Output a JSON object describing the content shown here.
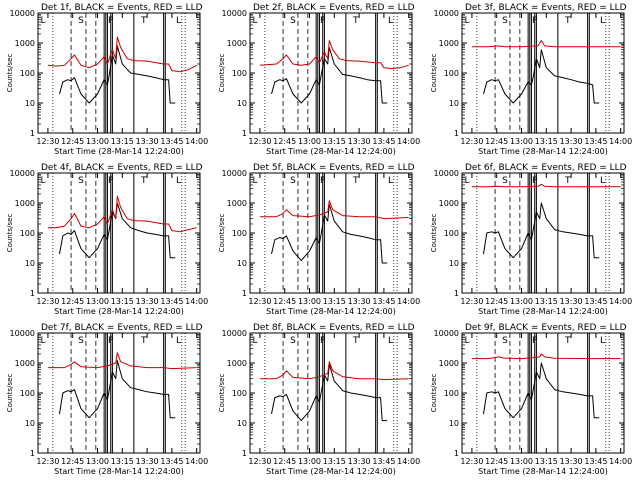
{
  "figure": {
    "xlabel": "Start Time (28-Mar-14 12:24:00)",
    "ylabel": "Counts/sec",
    "black_label": "BLACK = Events",
    "red_label": "RED = LLD",
    "x_ticks": [
      "12:30",
      "12:45",
      "13:00",
      "13:15",
      "13:30",
      "13:45",
      "14:00"
    ],
    "y_ticks": [
      "1",
      "10",
      "100",
      "1000",
      "10000"
    ],
    "interval_letters": {
      "left": "L",
      "start": "S",
      "peak": "P",
      "tail": "T",
      "right": "L"
    }
  },
  "chart_data": [
    {
      "type": "line",
      "title": "Det 1f, BLACK = Events, RED = LLD",
      "xlabel": "Start Time (28-Mar-14 12:24:00)",
      "ylabel": "Counts/sec",
      "yscale": "log",
      "ylim": [
        1,
        10000
      ],
      "xlim": [
        "12:24",
        "14:02"
      ],
      "series": [
        {
          "name": "BLACK = Events",
          "color": "#000000",
          "x": [
            "12:37",
            "12:39",
            "12:42",
            "12:44",
            "12:46",
            "12:50",
            "12:55",
            "13:00",
            "13:04",
            "13:06",
            "13:07",
            "13:09",
            "13:11",
            "13:12",
            "13:15",
            "13:20",
            "13:25",
            "13:30",
            "13:35",
            "13:40",
            "13:43",
            "13:44",
            "13:47"
          ],
          "y": [
            20,
            50,
            60,
            55,
            70,
            20,
            10,
            20,
            60,
            40,
            80,
            400,
            200,
            800,
            200,
            100,
            90,
            80,
            70,
            60,
            60,
            10,
            10
          ]
        },
        {
          "name": "RED = LLD",
          "color": "#cc0000",
          "x": [
            "12:30",
            "12:35",
            "12:40",
            "12:44",
            "12:46",
            "12:50",
            "12:55",
            "13:00",
            "13:04",
            "13:06",
            "13:09",
            "13:11",
            "13:12",
            "13:14",
            "13:18",
            "13:22",
            "13:30",
            "13:40",
            "13:43",
            "13:45",
            "13:50",
            "13:55",
            "14:00"
          ],
          "y": [
            180,
            170,
            180,
            300,
            400,
            180,
            150,
            200,
            350,
            200,
            600,
            300,
            1600,
            700,
            300,
            260,
            250,
            200,
            200,
            120,
            110,
            130,
            180
          ]
        }
      ]
    },
    {
      "type": "line",
      "title": "Det 2f, BLACK = Events, RED = LLD",
      "xlabel": "Start Time (28-Mar-14 12:24:00)",
      "ylabel": "Counts/sec",
      "yscale": "log",
      "ylim": [
        1,
        10000
      ],
      "xlim": [
        "12:24",
        "14:02"
      ],
      "series": [
        {
          "name": "BLACK = Events",
          "color": "#000000",
          "x": [
            "12:37",
            "12:39",
            "12:42",
            "12:44",
            "12:46",
            "12:50",
            "12:55",
            "13:00",
            "13:04",
            "13:06",
            "13:07",
            "13:09",
            "13:11",
            "13:12",
            "13:15",
            "13:20",
            "13:25",
            "13:30",
            "13:35",
            "13:40",
            "13:43",
            "13:44",
            "13:47"
          ],
          "y": [
            20,
            50,
            60,
            55,
            65,
            20,
            10,
            20,
            60,
            40,
            80,
            300,
            200,
            700,
            200,
            90,
            80,
            70,
            60,
            55,
            55,
            10,
            10
          ]
        },
        {
          "name": "RED = LLD",
          "color": "#cc0000",
          "x": [
            "12:30",
            "12:35",
            "12:40",
            "12:44",
            "12:46",
            "12:50",
            "12:55",
            "13:00",
            "13:04",
            "13:06",
            "13:09",
            "13:11",
            "13:12",
            "13:14",
            "13:18",
            "13:22",
            "13:30",
            "13:40",
            "13:43",
            "13:45",
            "13:50",
            "13:55",
            "14:00"
          ],
          "y": [
            180,
            190,
            200,
            300,
            400,
            200,
            180,
            200,
            350,
            220,
            500,
            300,
            1200,
            600,
            300,
            260,
            250,
            220,
            220,
            150,
            140,
            150,
            180
          ]
        }
      ]
    },
    {
      "type": "line",
      "title": "Det 3f, BLACK = Events, RED = LLD",
      "xlabel": "Start Time (28-Mar-14 12:24:00)",
      "ylabel": "Counts/sec",
      "yscale": "log",
      "ylim": [
        1,
        10000
      ],
      "xlim": [
        "12:24",
        "14:02"
      ],
      "series": [
        {
          "name": "BLACK = Events",
          "color": "#000000",
          "x": [
            "12:37",
            "12:39",
            "12:42",
            "12:44",
            "12:46",
            "12:50",
            "12:55",
            "13:00",
            "13:04",
            "13:06",
            "13:07",
            "13:09",
            "13:11",
            "13:12",
            "13:15",
            "13:20",
            "13:25",
            "13:30",
            "13:35",
            "13:40",
            "13:43",
            "13:44",
            "13:47"
          ],
          "y": [
            20,
            50,
            60,
            55,
            60,
            20,
            10,
            20,
            50,
            40,
            70,
            300,
            150,
            600,
            150,
            80,
            70,
            60,
            50,
            45,
            40,
            10,
            10
          ]
        },
        {
          "name": "RED = LLD",
          "color": "#cc0000",
          "x": [
            "12:30",
            "12:40",
            "12:46",
            "12:50",
            "13:00",
            "13:10",
            "13:12",
            "13:14",
            "13:20",
            "13:40",
            "14:00"
          ],
          "y": [
            750,
            750,
            800,
            750,
            750,
            800,
            1200,
            800,
            750,
            750,
            750
          ]
        }
      ]
    },
    {
      "type": "line",
      "title": "Det 4f, BLACK = Events, RED = LLD",
      "xlabel": "Start Time (28-Mar-14 12:24:00)",
      "ylabel": "Counts/sec",
      "yscale": "log",
      "ylim": [
        1,
        10000
      ],
      "xlim": [
        "12:24",
        "14:02"
      ],
      "series": [
        {
          "name": "BLACK = Events",
          "color": "#000000",
          "x": [
            "12:37",
            "12:39",
            "12:42",
            "12:44",
            "12:46",
            "12:50",
            "12:55",
            "13:00",
            "13:04",
            "13:06",
            "13:07",
            "13:09",
            "13:11",
            "13:12",
            "13:15",
            "13:20",
            "13:25",
            "13:30",
            "13:35",
            "13:40",
            "13:43",
            "13:44",
            "13:47"
          ],
          "y": [
            20,
            80,
            100,
            90,
            120,
            30,
            15,
            30,
            90,
            60,
            120,
            500,
            300,
            1000,
            300,
            150,
            120,
            100,
            90,
            80,
            80,
            15,
            15
          ]
        },
        {
          "name": "RED = LLD",
          "color": "#cc0000",
          "x": [
            "12:30",
            "12:35",
            "12:40",
            "12:44",
            "12:46",
            "12:50",
            "12:55",
            "13:00",
            "13:04",
            "13:06",
            "13:09",
            "13:11",
            "13:12",
            "13:14",
            "13:18",
            "13:22",
            "13:30",
            "13:40",
            "13:43",
            "13:45",
            "13:50",
            "13:55",
            "14:00"
          ],
          "y": [
            150,
            150,
            170,
            300,
            450,
            170,
            150,
            200,
            350,
            200,
            600,
            300,
            1700,
            700,
            300,
            260,
            250,
            200,
            200,
            120,
            110,
            130,
            150
          ]
        }
      ]
    },
    {
      "type": "line",
      "title": "Det 5f, BLACK = Events, RED = LLD",
      "xlabel": "Start Time (28-Mar-14 12:24:00)",
      "ylabel": "Counts/sec",
      "yscale": "log",
      "ylim": [
        1,
        10000
      ],
      "xlim": [
        "12:24",
        "14:02"
      ],
      "series": [
        {
          "name": "BLACK = Events",
          "color": "#000000",
          "x": [
            "12:37",
            "12:39",
            "12:42",
            "12:44",
            "12:46",
            "12:50",
            "12:55",
            "13:00",
            "13:04",
            "13:06",
            "13:07",
            "13:09",
            "13:11",
            "13:12",
            "13:15",
            "13:20",
            "13:25",
            "13:30",
            "13:35",
            "13:40",
            "13:43",
            "13:44",
            "13:47"
          ],
          "y": [
            20,
            60,
            70,
            65,
            80,
            25,
            12,
            25,
            70,
            45,
            90,
            400,
            250,
            900,
            250,
            110,
            90,
            80,
            70,
            60,
            60,
            10,
            10
          ]
        },
        {
          "name": "RED = LLD",
          "color": "#cc0000",
          "x": [
            "12:30",
            "12:40",
            "12:44",
            "12:46",
            "12:50",
            "13:00",
            "13:06",
            "13:11",
            "13:12",
            "13:14",
            "13:20",
            "13:30",
            "13:40",
            "13:45",
            "14:00"
          ],
          "y": [
            350,
            350,
            450,
            600,
            380,
            350,
            400,
            500,
            1200,
            600,
            380,
            350,
            350,
            300,
            330
          ]
        }
      ]
    },
    {
      "type": "line",
      "title": "Det 6f, BLACK = Events, RED = LLD",
      "xlabel": "Start Time (28-Mar-14 12:24:00)",
      "ylabel": "Counts/sec",
      "yscale": "log",
      "ylim": [
        1,
        10000
      ],
      "xlim": [
        "12:24",
        "14:02"
      ],
      "series": [
        {
          "name": "BLACK = Events",
          "color": "#000000",
          "x": [
            "12:37",
            "12:39",
            "12:42",
            "12:44",
            "12:46",
            "12:50",
            "12:55",
            "13:00",
            "13:04",
            "13:06",
            "13:07",
            "13:09",
            "13:11",
            "13:12",
            "13:15",
            "13:20",
            "13:25",
            "13:30",
            "13:35",
            "13:40",
            "13:43",
            "13:44",
            "13:47"
          ],
          "y": [
            20,
            100,
            110,
            100,
            110,
            30,
            15,
            30,
            100,
            60,
            120,
            500,
            300,
            1000,
            300,
            130,
            110,
            100,
            90,
            80,
            80,
            15,
            15
          ]
        },
        {
          "name": "RED = LLD",
          "color": "#cc0000",
          "x": [
            "12:30",
            "12:40",
            "12:46",
            "12:50",
            "13:00",
            "13:10",
            "13:12",
            "13:14",
            "13:20",
            "13:40",
            "14:00"
          ],
          "y": [
            3500,
            3500,
            3600,
            3500,
            3500,
            3600,
            4200,
            3600,
            3500,
            3500,
            3500
          ]
        }
      ]
    },
    {
      "type": "line",
      "title": "Det 7f, BLACK = Events, RED = LLD",
      "xlabel": "Start Time (28-Mar-14 12:24:00)",
      "ylabel": "Counts/sec",
      "yscale": "log",
      "ylim": [
        1,
        10000
      ],
      "xlim": [
        "12:24",
        "14:02"
      ],
      "series": [
        {
          "name": "BLACK = Events",
          "color": "#000000",
          "x": [
            "12:37",
            "12:39",
            "12:42",
            "12:44",
            "12:46",
            "12:50",
            "12:55",
            "13:00",
            "13:04",
            "13:06",
            "13:07",
            "13:09",
            "13:11",
            "13:12",
            "13:15",
            "13:20",
            "13:25",
            "13:30",
            "13:35",
            "13:40",
            "13:43",
            "13:44",
            "13:47"
          ],
          "y": [
            20,
            100,
            120,
            110,
            130,
            30,
            15,
            30,
            100,
            60,
            120,
            500,
            300,
            1200,
            300,
            150,
            130,
            110,
            100,
            90,
            90,
            15,
            15
          ]
        },
        {
          "name": "RED = LLD",
          "color": "#cc0000",
          "x": [
            "12:30",
            "12:40",
            "12:44",
            "12:46",
            "12:50",
            "13:00",
            "13:06",
            "13:11",
            "13:12",
            "13:14",
            "13:20",
            "13:30",
            "13:40",
            "13:45",
            "14:00"
          ],
          "y": [
            700,
            700,
            900,
            1100,
            750,
            700,
            800,
            1000,
            2200,
            1100,
            800,
            700,
            700,
            650,
            700
          ]
        }
      ]
    },
    {
      "type": "line",
      "title": "Det 8f, BLACK = Events, RED = LLD",
      "xlabel": "Start Time (28-Mar-14 12:24:00)",
      "ylabel": "Counts/sec",
      "yscale": "log",
      "ylim": [
        1,
        10000
      ],
      "xlim": [
        "12:24",
        "14:02"
      ],
      "series": [
        {
          "name": "BLACK = Events",
          "color": "#000000",
          "x": [
            "12:37",
            "12:39",
            "12:42",
            "12:44",
            "12:46",
            "12:50",
            "12:55",
            "13:00",
            "13:04",
            "13:06",
            "13:07",
            "13:09",
            "13:11",
            "13:12",
            "13:15",
            "13:20",
            "13:25",
            "13:30",
            "13:35",
            "13:40",
            "13:43",
            "13:44",
            "13:47"
          ],
          "y": [
            20,
            70,
            80,
            75,
            90,
            25,
            12,
            25,
            80,
            50,
            100,
            400,
            250,
            900,
            250,
            120,
            100,
            90,
            80,
            70,
            70,
            12,
            12
          ]
        },
        {
          "name": "RED = LLD",
          "color": "#cc0000",
          "x": [
            "12:30",
            "12:40",
            "12:44",
            "12:46",
            "12:50",
            "13:00",
            "13:06",
            "13:11",
            "13:12",
            "13:14",
            "13:20",
            "13:30",
            "13:40",
            "13:45",
            "14:00"
          ],
          "y": [
            300,
            300,
            400,
            550,
            330,
            300,
            350,
            450,
            1100,
            550,
            350,
            300,
            300,
            280,
            300
          ]
        }
      ]
    },
    {
      "type": "line",
      "title": "Det 9f, BLACK = Events, RED = LLD",
      "xlabel": "Start Time (28-Mar-14 12:24:00)",
      "ylabel": "Counts/sec",
      "yscale": "log",
      "ylim": [
        1,
        10000
      ],
      "xlim": [
        "12:24",
        "14:02"
      ],
      "series": [
        {
          "name": "BLACK = Events",
          "color": "#000000",
          "x": [
            "12:37",
            "12:39",
            "12:42",
            "12:44",
            "12:46",
            "12:50",
            "12:55",
            "13:00",
            "13:04",
            "13:06",
            "13:07",
            "13:09",
            "13:11",
            "13:12",
            "13:15",
            "13:20",
            "13:25",
            "13:30",
            "13:35",
            "13:40",
            "13:43",
            "13:44",
            "13:47"
          ],
          "y": [
            20,
            100,
            110,
            100,
            110,
            30,
            15,
            30,
            100,
            60,
            120,
            500,
            300,
            1000,
            300,
            130,
            110,
            100,
            90,
            80,
            80,
            15,
            15
          ]
        },
        {
          "name": "RED = LLD",
          "color": "#cc0000",
          "x": [
            "12:30",
            "12:40",
            "12:46",
            "12:50",
            "13:00",
            "13:06",
            "13:11",
            "13:12",
            "13:14",
            "13:20",
            "13:40",
            "14:00"
          ],
          "y": [
            1400,
            1400,
            1600,
            1450,
            1400,
            1500,
            1600,
            2000,
            1600,
            1450,
            1400,
            1400
          ]
        }
      ]
    }
  ]
}
